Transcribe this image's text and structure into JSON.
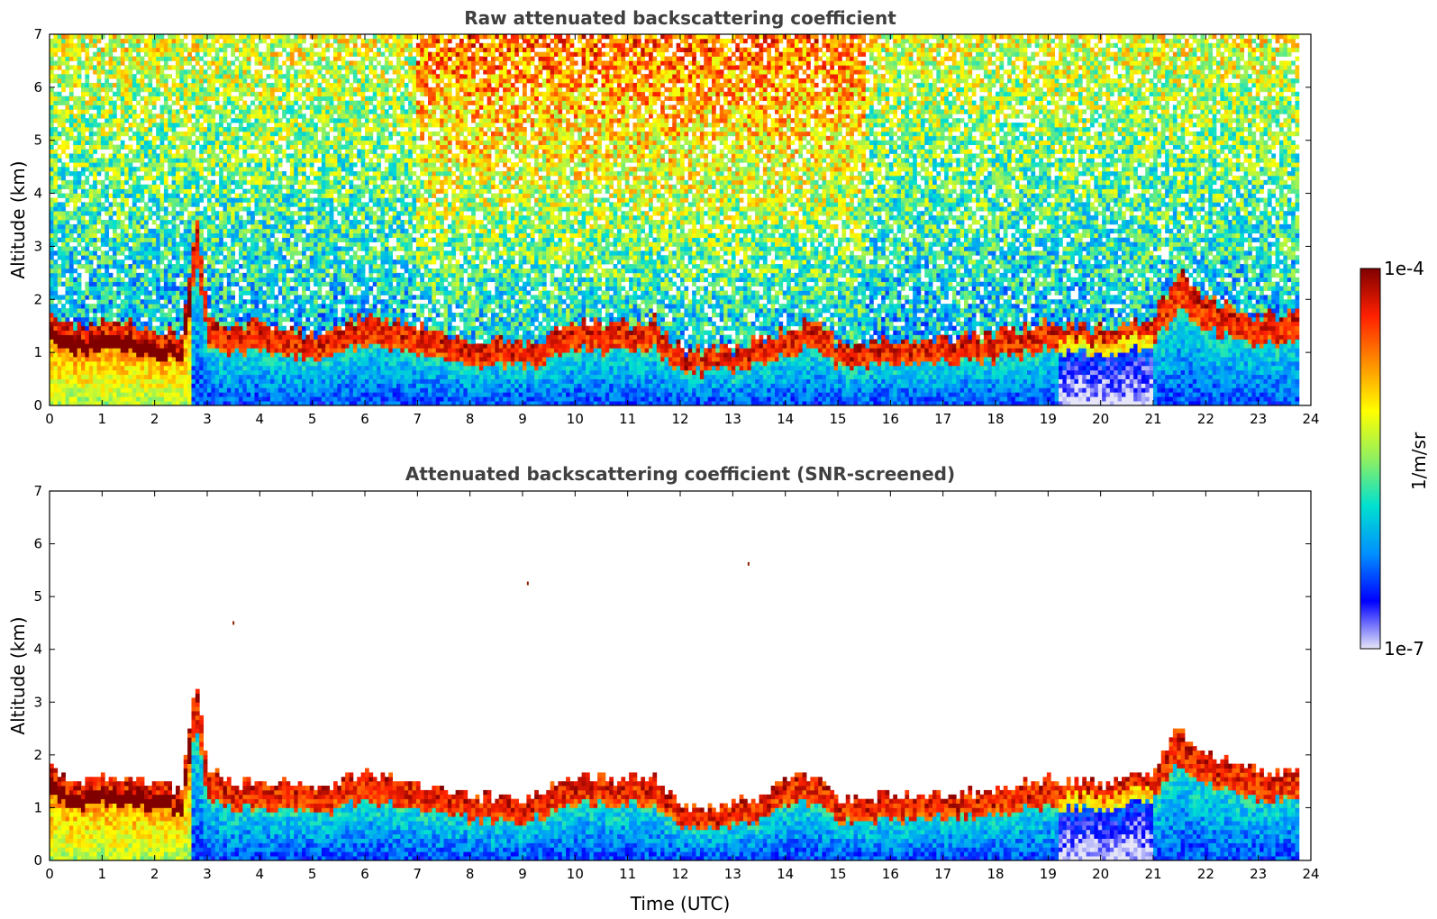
{
  "chart_data": [
    {
      "type": "heatmap",
      "title": "Raw attenuated backscattering coefficient",
      "xlabel": "",
      "ylabel": "Altitude (km)",
      "xlim": [
        0,
        24
      ],
      "ylim": [
        0,
        7
      ],
      "x_ticks": [
        "0",
        "1",
        "2",
        "3",
        "4",
        "5",
        "6",
        "7",
        "8",
        "9",
        "10",
        "11",
        "12",
        "13",
        "14",
        "15",
        "16",
        "17",
        "18",
        "19",
        "20",
        "21",
        "22",
        "23",
        "24"
      ],
      "y_ticks": [
        "0",
        "1",
        "2",
        "3",
        "4",
        "5",
        "6",
        "7"
      ],
      "boundary_layer_top_km": [
        [
          0,
          1.5
        ],
        [
          0.5,
          1.2
        ],
        [
          1,
          1.4
        ],
        [
          1.5,
          1.3
        ],
        [
          2,
          1.2
        ],
        [
          2.5,
          1.1
        ],
        [
          2.8,
          3.2
        ],
        [
          3,
          1.5
        ],
        [
          3.5,
          1.2
        ],
        [
          4,
          1.3
        ],
        [
          5,
          1.1
        ],
        [
          6,
          1.4
        ],
        [
          7,
          1.2
        ],
        [
          8,
          1.0
        ],
        [
          9,
          0.9
        ],
        [
          10,
          1.3
        ],
        [
          11,
          1.3
        ],
        [
          11.5,
          1.4
        ],
        [
          12,
          0.8
        ],
        [
          13,
          0.8
        ],
        [
          14,
          1.2
        ],
        [
          14.5,
          1.4
        ],
        [
          15,
          0.9
        ],
        [
          16,
          1.0
        ],
        [
          17,
          1.0
        ],
        [
          18,
          1.1
        ],
        [
          19,
          1.3
        ],
        [
          20,
          1.2
        ],
        [
          21,
          1.4
        ],
        [
          21.5,
          2.3
        ],
        [
          22,
          1.8
        ],
        [
          23,
          1.4
        ],
        [
          23.8,
          1.5
        ]
      ],
      "noise_high_intensity_range_h": [
        7,
        15.5
      ],
      "data_end_h": 23.8,
      "noisy_upper_background": true
    },
    {
      "type": "heatmap",
      "title": "Attenuated backscattering coefficient (SNR-screened)",
      "xlabel": "Time (UTC)",
      "ylabel": "Altitude (km)",
      "xlim": [
        0,
        24
      ],
      "ylim": [
        0,
        7
      ],
      "x_ticks": [
        "0",
        "1",
        "2",
        "3",
        "4",
        "5",
        "6",
        "7",
        "8",
        "9",
        "10",
        "11",
        "12",
        "13",
        "14",
        "15",
        "16",
        "17",
        "18",
        "19",
        "20",
        "21",
        "22",
        "23",
        "24"
      ],
      "y_ticks": [
        "0",
        "1",
        "2",
        "3",
        "4",
        "5",
        "6",
        "7"
      ],
      "boundary_layer_top_km": [
        [
          0,
          1.5
        ],
        [
          0.5,
          1.2
        ],
        [
          1,
          1.4
        ],
        [
          1.5,
          1.3
        ],
        [
          2,
          1.2
        ],
        [
          2.5,
          1.1
        ],
        [
          2.8,
          3.2
        ],
        [
          3,
          1.5
        ],
        [
          3.5,
          1.2
        ],
        [
          4,
          1.3
        ],
        [
          5,
          1.1
        ],
        [
          6,
          1.4
        ],
        [
          7,
          1.2
        ],
        [
          8,
          1.0
        ],
        [
          9,
          0.9
        ],
        [
          10,
          1.3
        ],
        [
          11,
          1.3
        ],
        [
          11.5,
          1.4
        ],
        [
          12,
          0.8
        ],
        [
          13,
          0.8
        ],
        [
          14,
          1.2
        ],
        [
          14.5,
          1.4
        ],
        [
          15,
          0.9
        ],
        [
          16,
          1.0
        ],
        [
          17,
          1.0
        ],
        [
          18,
          1.1
        ],
        [
          19,
          1.3
        ],
        [
          20,
          1.2
        ],
        [
          21,
          1.4
        ],
        [
          21.5,
          2.3
        ],
        [
          22,
          1.8
        ],
        [
          23,
          1.4
        ],
        [
          23.8,
          1.5
        ]
      ],
      "isolated_points": [
        [
          3.5,
          4.5
        ],
        [
          9.1,
          5.25
        ],
        [
          13.3,
          5.62
        ]
      ],
      "data_end_h": 23.8,
      "noisy_upper_background": false
    }
  ],
  "colorbar": {
    "label": "1/m/sr",
    "max_label": "1e-4",
    "min_label": "1e-7",
    "colormap": [
      "#e6e6f8",
      "#0000ff",
      "#0090ff",
      "#00e0d0",
      "#90f060",
      "#ffff00",
      "#ff9000",
      "#ff2000",
      "#800000"
    ]
  }
}
